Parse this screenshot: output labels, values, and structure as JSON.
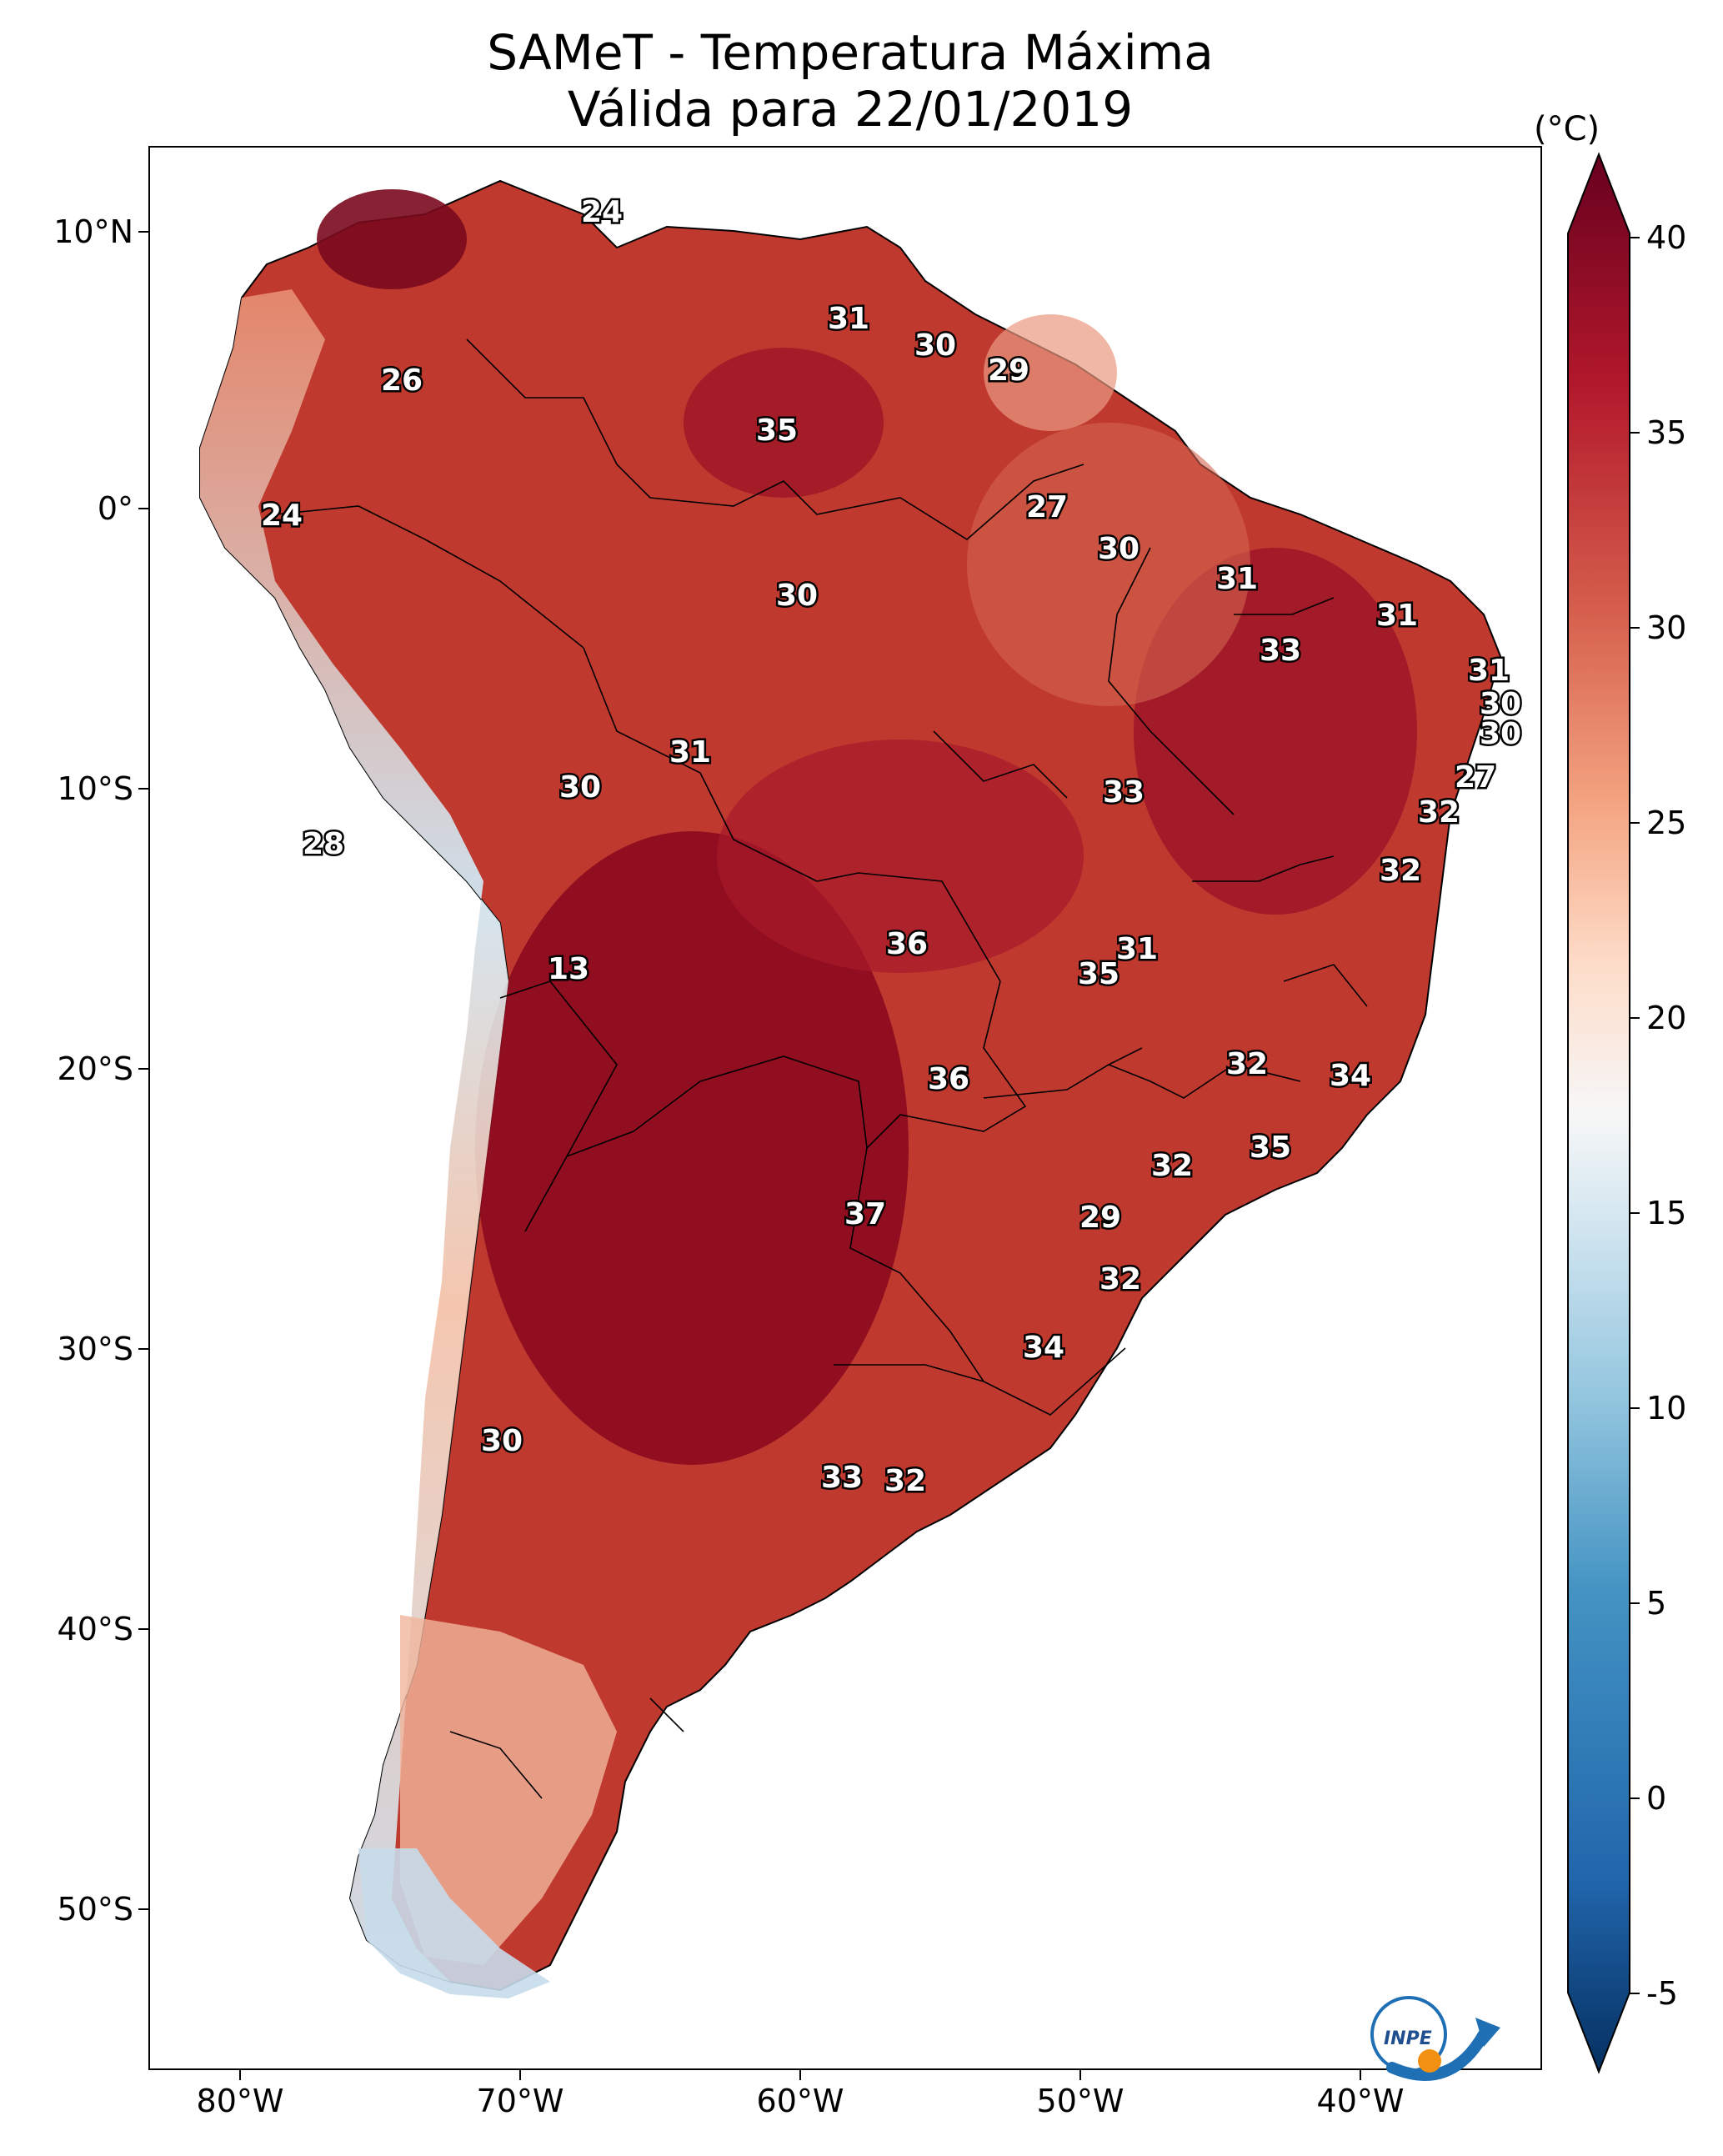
{
  "title_line1": "SAMeT - Temperatura Máxima",
  "title_line2": "Válida para 22/01/2019",
  "lat_labels": [
    "10°N",
    "0°",
    "10°S",
    "20°S",
    "30°S",
    "40°S",
    "50°S"
  ],
  "lon_labels": [
    "80°W",
    "70°W",
    "60°W",
    "50°W",
    "40°W"
  ],
  "colorbar": {
    "unit": "(°C)",
    "ticks": [
      "40",
      "35",
      "30",
      "25",
      "20",
      "15",
      "10",
      "5",
      "0",
      "-5"
    ],
    "range": [
      -5,
      40
    ],
    "colors": [
      "#053061",
      "#2166ac",
      "#4393c3",
      "#92c5de",
      "#d1e5f0",
      "#f7f7f7",
      "#fddbc7",
      "#f4a582",
      "#d6604d",
      "#b2182b",
      "#67001f"
    ]
  },
  "point_labels": [
    "24",
    "31",
    "30",
    "29",
    "26",
    "35",
    "24",
    "27",
    "30",
    "30",
    "31",
    "31",
    "33",
    "31",
    "30",
    "30",
    "31",
    "30",
    "27",
    "33",
    "32",
    "28",
    "32",
    "13",
    "36",
    "31",
    "35",
    "32",
    "34",
    "36",
    "35",
    "32",
    "37",
    "29",
    "32",
    "34",
    "30",
    "33",
    "32"
  ],
  "logo_text": "INPE",
  "colors": {
    "hot": "#8b0a1e",
    "warm": "#c43a32",
    "mild": "#e07b63",
    "cool": "#f5d0c1",
    "cold": "#bcd8ea",
    "ocean": "#ffffff"
  }
}
